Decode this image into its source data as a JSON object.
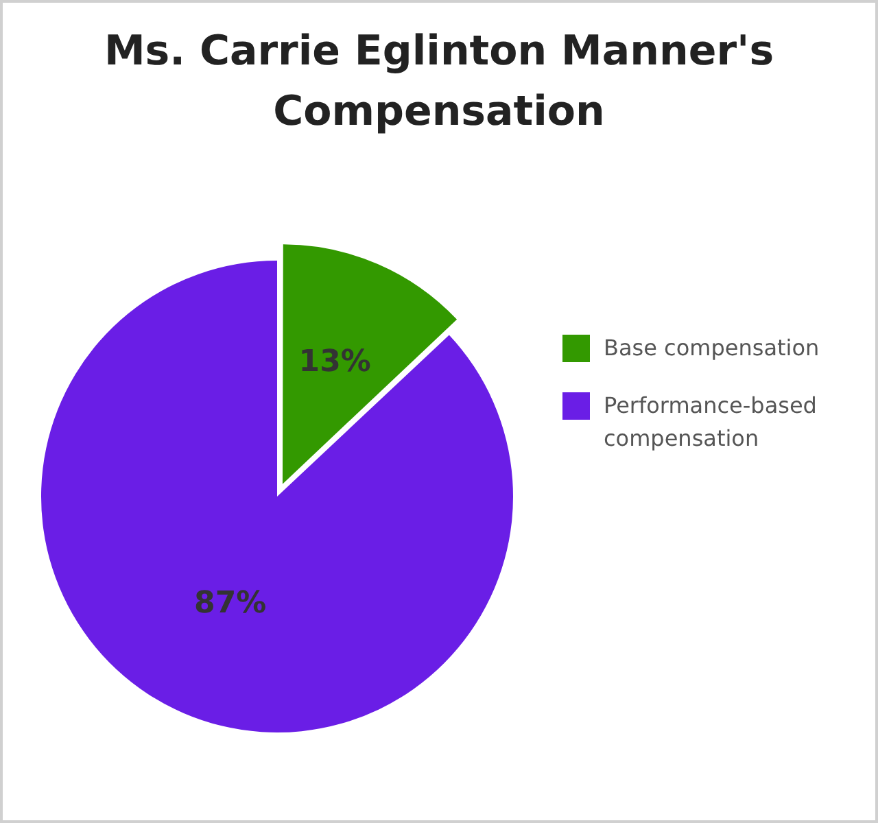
{
  "chart_data": {
    "type": "pie",
    "title": "Ms. Carrie Eglinton Manner's Compensation",
    "categories": [
      "Base compensation",
      "Performance-based compensation"
    ],
    "values": [
      13,
      87
    ],
    "colors": [
      "#339900",
      "#6a1ee6"
    ],
    "value_labels": [
      "13%",
      "87%"
    ],
    "legend": "right"
  }
}
